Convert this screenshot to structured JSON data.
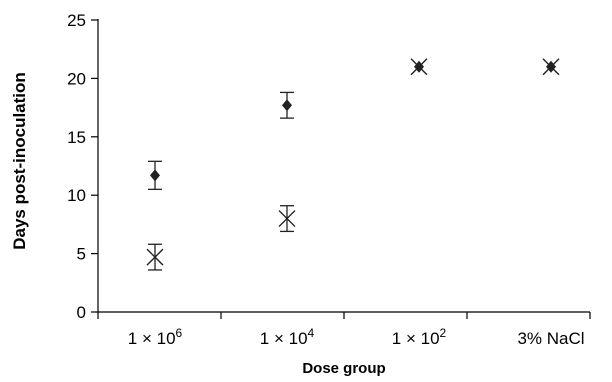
{
  "chart_data": {
    "type": "scatter",
    "title": "",
    "xlabel": "Dose group",
    "ylabel": "Days post-inoculation",
    "categories": [
      {
        "base": "1 × 10",
        "sup": "6"
      },
      {
        "base": "1 × 10",
        "sup": "4"
      },
      {
        "base": "1 × 10",
        "sup": "2"
      },
      {
        "base": "3% NaCl",
        "sup": ""
      }
    ],
    "ylim": [
      0,
      25
    ],
    "yticks": [
      0,
      5,
      10,
      15,
      20,
      25
    ],
    "grid": false,
    "legend": "none",
    "series": [
      {
        "marker": "diamond",
        "values": [
          11.7,
          17.7,
          21,
          21
        ],
        "errors": [
          1.2,
          1.1,
          null,
          null
        ]
      },
      {
        "marker": "x",
        "values": [
          4.7,
          8,
          21,
          21
        ],
        "errors": [
          1.1,
          1.1,
          null,
          null
        ]
      }
    ],
    "colors": {
      "marks": "#222222",
      "axes": "#000000"
    }
  }
}
